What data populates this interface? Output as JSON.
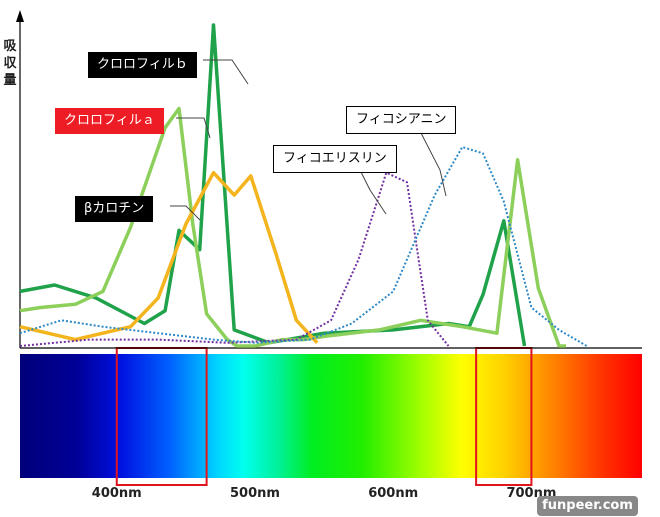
{
  "chart_data": {
    "type": "line",
    "title": "",
    "ylabel": "吸収量",
    "xlabel": "",
    "xlim": [
      330,
      780
    ],
    "ylim": [
      0,
      1
    ],
    "x_ticks": [
      "400nm",
      "500nm",
      "600nm",
      "700nm"
    ],
    "highlight_ranges": [
      [
        400,
        465
      ],
      [
        660,
        700
      ]
    ],
    "series": [
      {
        "name": "クロロフィルｂ",
        "color": "#1fa24a",
        "style": "solid",
        "x": [
          330,
          355,
          385,
          420,
          435,
          445,
          460,
          470,
          485,
          510,
          550,
          600,
          640,
          655,
          665,
          680,
          695
        ],
        "y": [
          0.17,
          0.19,
          0.15,
          0.07,
          0.11,
          0.36,
          0.3,
          1.0,
          0.05,
          0.01,
          0.04,
          0.05,
          0.07,
          0.06,
          0.16,
          0.39,
          0.0
        ]
      },
      {
        "name": "クロロフィルａ",
        "color": "#ee1c24",
        "style": "solid",
        "x": [
          330,
          345,
          370,
          390,
          410,
          435,
          445,
          455,
          465,
          480,
          487,
          500,
          520,
          535,
          550,
          590,
          620,
          650,
          675,
          690,
          705,
          720,
          725
        ],
        "y": [
          0.11,
          0.12,
          0.13,
          0.17,
          0.37,
          0.68,
          0.74,
          0.38,
          0.1,
          0.02,
          0.0,
          0.0,
          0.02,
          0.02,
          0.03,
          0.05,
          0.08,
          0.06,
          0.04,
          0.58,
          0.18,
          0.0,
          0.0
        ]
      },
      {
        "name": "βカロチン",
        "color": "#f4b41d",
        "style": "solid",
        "x": [
          330,
          370,
          410,
          430,
          450,
          470,
          485,
          497,
          515,
          530,
          545
        ],
        "y": [
          0.06,
          0.02,
          0.06,
          0.15,
          0.38,
          0.54,
          0.47,
          0.53,
          0.29,
          0.08,
          0.01
        ]
      },
      {
        "name": "フィコエリスリン",
        "color": "#7030a0",
        "style": "dotted",
        "x": [
          330,
          380,
          430,
          480,
          530,
          555,
          575,
          595,
          610,
          625,
          640
        ],
        "y": [
          0.0,
          0.02,
          0.02,
          0.01,
          0.02,
          0.08,
          0.27,
          0.54,
          0.51,
          0.08,
          0.0
        ]
      },
      {
        "name": "フィコシアニン",
        "color": "#2e89c7",
        "style": "dotted",
        "x": [
          330,
          360,
          390,
          430,
          470,
          500,
          540,
          570,
          600,
          630,
          650,
          665,
          680,
          700,
          720,
          740
        ],
        "y": [
          0.04,
          0.08,
          0.06,
          0.04,
          0.02,
          0.01,
          0.02,
          0.07,
          0.17,
          0.47,
          0.62,
          0.6,
          0.45,
          0.12,
          0.05,
          0.0
        ]
      }
    ],
    "labels": {
      "chl_b": "クロロフィルｂ",
      "chl_a": "クロロフィルａ",
      "carotene": "βカロチン",
      "phycoerythrin": "フィコエリスリン",
      "phycocyanin": "フィコシアニン"
    }
  },
  "watermark": "funpeer.com"
}
